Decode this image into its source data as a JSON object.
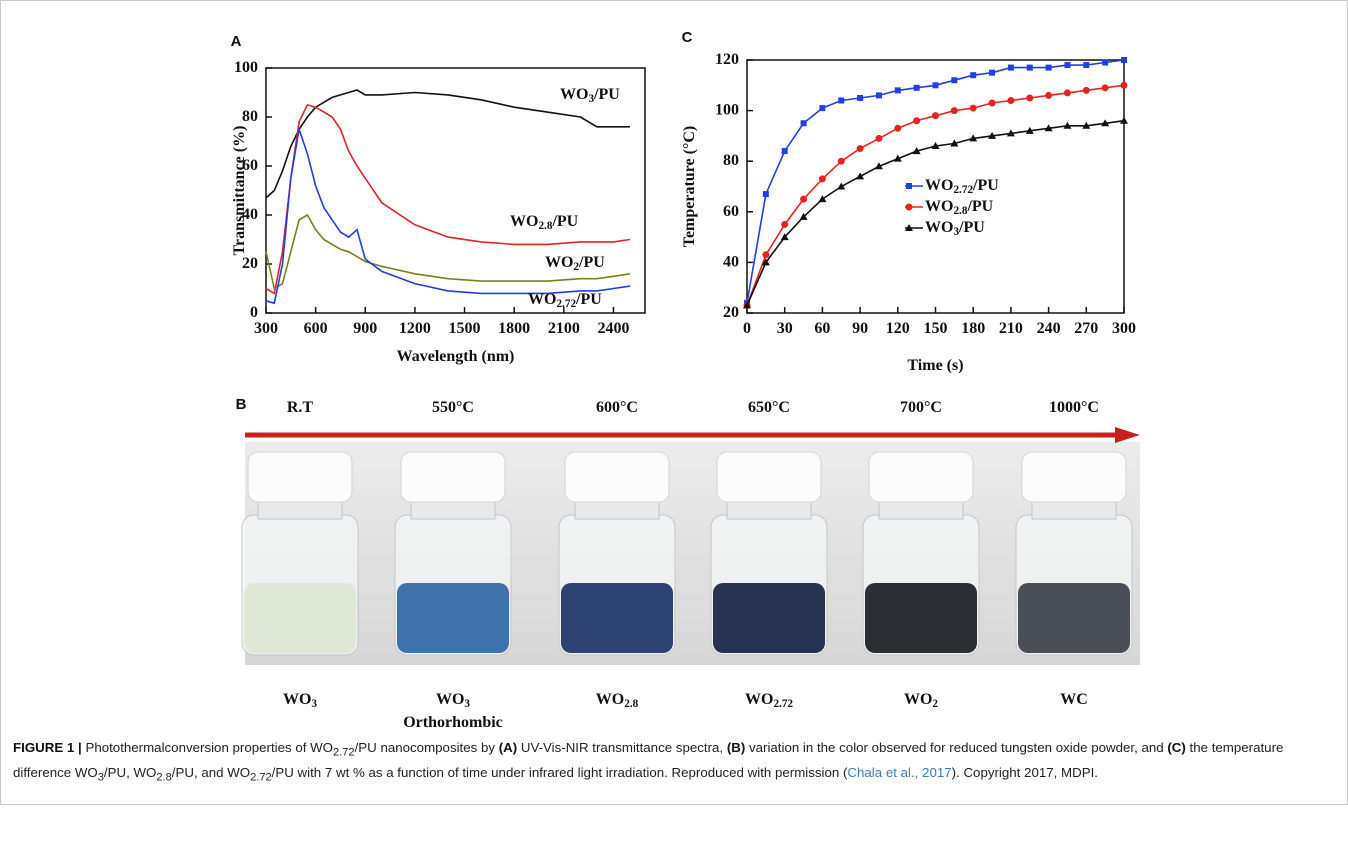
{
  "chart_data": [
    {
      "type": "line",
      "panel": "A",
      "y_label": "Transmittance (%)",
      "x_label": "Wavelength (nm)",
      "x": [
        300,
        350,
        400,
        450,
        500,
        550,
        600,
        650,
        700,
        750,
        800,
        850,
        900,
        1000,
        1200,
        1400,
        1600,
        1800,
        2000,
        2200,
        2300,
        2400,
        2500
      ],
      "xlim": [
        300,
        2500
      ],
      "xticks": [
        300,
        600,
        900,
        1200,
        1500,
        1800,
        2100,
        2400
      ],
      "ylim": [
        0,
        100
      ],
      "yticks": [
        0,
        20,
        40,
        60,
        80,
        100
      ],
      "series": [
        {
          "name": "WO3/PU",
          "color": "#111111",
          "values": [
            47,
            50,
            58,
            68,
            75,
            80,
            84,
            86,
            88,
            89,
            90,
            91,
            89,
            89,
            90,
            89,
            87,
            84,
            82,
            80,
            76,
            76,
            76
          ]
        },
        {
          "name": "WO2.8/PU",
          "color": "#e8221f",
          "values": [
            10,
            8,
            25,
            55,
            78,
            85,
            84,
            82,
            80,
            75,
            66,
            60,
            55,
            45,
            36,
            31,
            29,
            28,
            28,
            29,
            29,
            29,
            30
          ]
        },
        {
          "name": "WO2/PU",
          "color": "#7f7f1a",
          "values": [
            25,
            10,
            12,
            25,
            38,
            40,
            34,
            30,
            28,
            26,
            25,
            23,
            21,
            19,
            16,
            14,
            13,
            13,
            13,
            14,
            14,
            15,
            16
          ]
        },
        {
          "name": "WO2.72/PU",
          "color": "#1f3fe8",
          "values": [
            5,
            4,
            20,
            55,
            75,
            65,
            52,
            43,
            38,
            33,
            31,
            34,
            22,
            17,
            12,
            9,
            8,
            8,
            8,
            9,
            9,
            10,
            11
          ]
        }
      ]
    },
    {
      "type": "line",
      "panel": "C",
      "y_label": "Temperature (°C)",
      "x_label": "Time (s)",
      "legend": true,
      "x": [
        0,
        15,
        30,
        45,
        60,
        75,
        90,
        105,
        120,
        135,
        150,
        165,
        180,
        195,
        210,
        225,
        240,
        255,
        270,
        285,
        300
      ],
      "xlim": [
        0,
        300
      ],
      "xticks": [
        0,
        30,
        60,
        90,
        120,
        150,
        180,
        210,
        240,
        270,
        300
      ],
      "ylim": [
        20,
        120
      ],
      "yticks": [
        20,
        40,
        60,
        80,
        100,
        120
      ],
      "series": [
        {
          "name": "WO2.72/PU",
          "color": "#1f3fe8",
          "marker": "square",
          "values": [
            24,
            67,
            84,
            95,
            101,
            104,
            105,
            106,
            108,
            109,
            110,
            112,
            114,
            115,
            117,
            117,
            117,
            118,
            118,
            119,
            120
          ]
        },
        {
          "name": "WO2.8/PU",
          "color": "#e8221f",
          "marker": "circle",
          "values": [
            23,
            43,
            55,
            65,
            73,
            80,
            85,
            89,
            93,
            96,
            98,
            100,
            101,
            103,
            104,
            105,
            106,
            107,
            108,
            109,
            110
          ]
        },
        {
          "name": "WO3/PU",
          "color": "#111111",
          "marker": "triangle",
          "values": [
            23,
            40,
            50,
            58,
            65,
            70,
            74,
            78,
            81,
            84,
            86,
            87,
            89,
            90,
            91,
            92,
            93,
            94,
            94,
            95,
            96
          ]
        }
      ]
    }
  ],
  "panel_b": {
    "panel": "B",
    "arrow_color": "#c9201e",
    "samples": [
      {
        "temperature": "R.T",
        "name": "WO3",
        "powder_color": "#dfe8d6"
      },
      {
        "temperature": "550°C",
        "name": "WO3",
        "note": "Orthorhombic",
        "powder_color": "#3f71aa"
      },
      {
        "temperature": "600°C",
        "name": "WO2.8",
        "powder_color": "#2c4373"
      },
      {
        "temperature": "650°C",
        "name": "WO2.72",
        "powder_color": "#283352"
      },
      {
        "temperature": "700°C",
        "name": "WO2",
        "powder_color": "#2c2e34"
      },
      {
        "temperature": "1000°C",
        "name": "WC",
        "powder_color": "#4a4f57"
      }
    ]
  },
  "caption": {
    "label": "FIGURE 1 |",
    "segments": [
      " Photothermalconversion properties of WO2.72/PU nanocomposites by ",
      "(A)",
      " UV-Vis-NIR transmittance spectra, ",
      "(B)",
      " variation in the color observed for reduced tungsten oxide powder, and ",
      "(C)",
      " the temperature difference WO3/PU, WO2.8/PU, and WO2.72/PU with 7 wt % as a function of time under infrared light irradiation. Reproduced with permission (",
      "Chala et al., 2017",
      "). Copyright 2017, MDPI."
    ]
  }
}
